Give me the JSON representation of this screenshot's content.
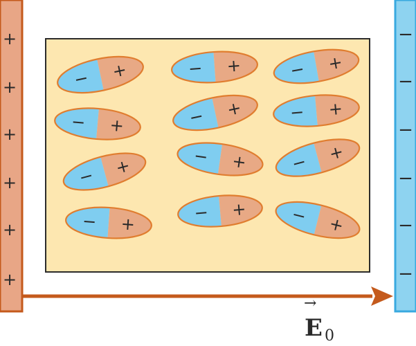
{
  "colors": {
    "positive_plate_fill": "#e8a686",
    "positive_plate_stroke": "#c55a1c",
    "negative_plate_fill": "#8ed3f0",
    "negative_plate_stroke": "#39a9df",
    "dielectric_fill": "#fde7b0",
    "dielectric_stroke": "#2b2b2b",
    "molecule_negative_fill": "#7fcdf0",
    "molecule_positive_fill": "#e8a985",
    "molecule_stroke": "#e07d2f",
    "field_arrow": "#c45a1c",
    "sign_color": "#2a2a2a"
  },
  "positive_plate": {
    "signs": [
      "+",
      "+",
      "+",
      "+",
      "+",
      "+"
    ]
  },
  "negative_plate": {
    "signs": [
      "−",
      "−",
      "−",
      "−",
      "−",
      "−"
    ]
  },
  "molecules": {
    "negative_sign": "−",
    "positive_sign": "+",
    "count": 12
  },
  "field": {
    "symbol": "E",
    "subscript": "0",
    "arrow_accent": "→"
  }
}
